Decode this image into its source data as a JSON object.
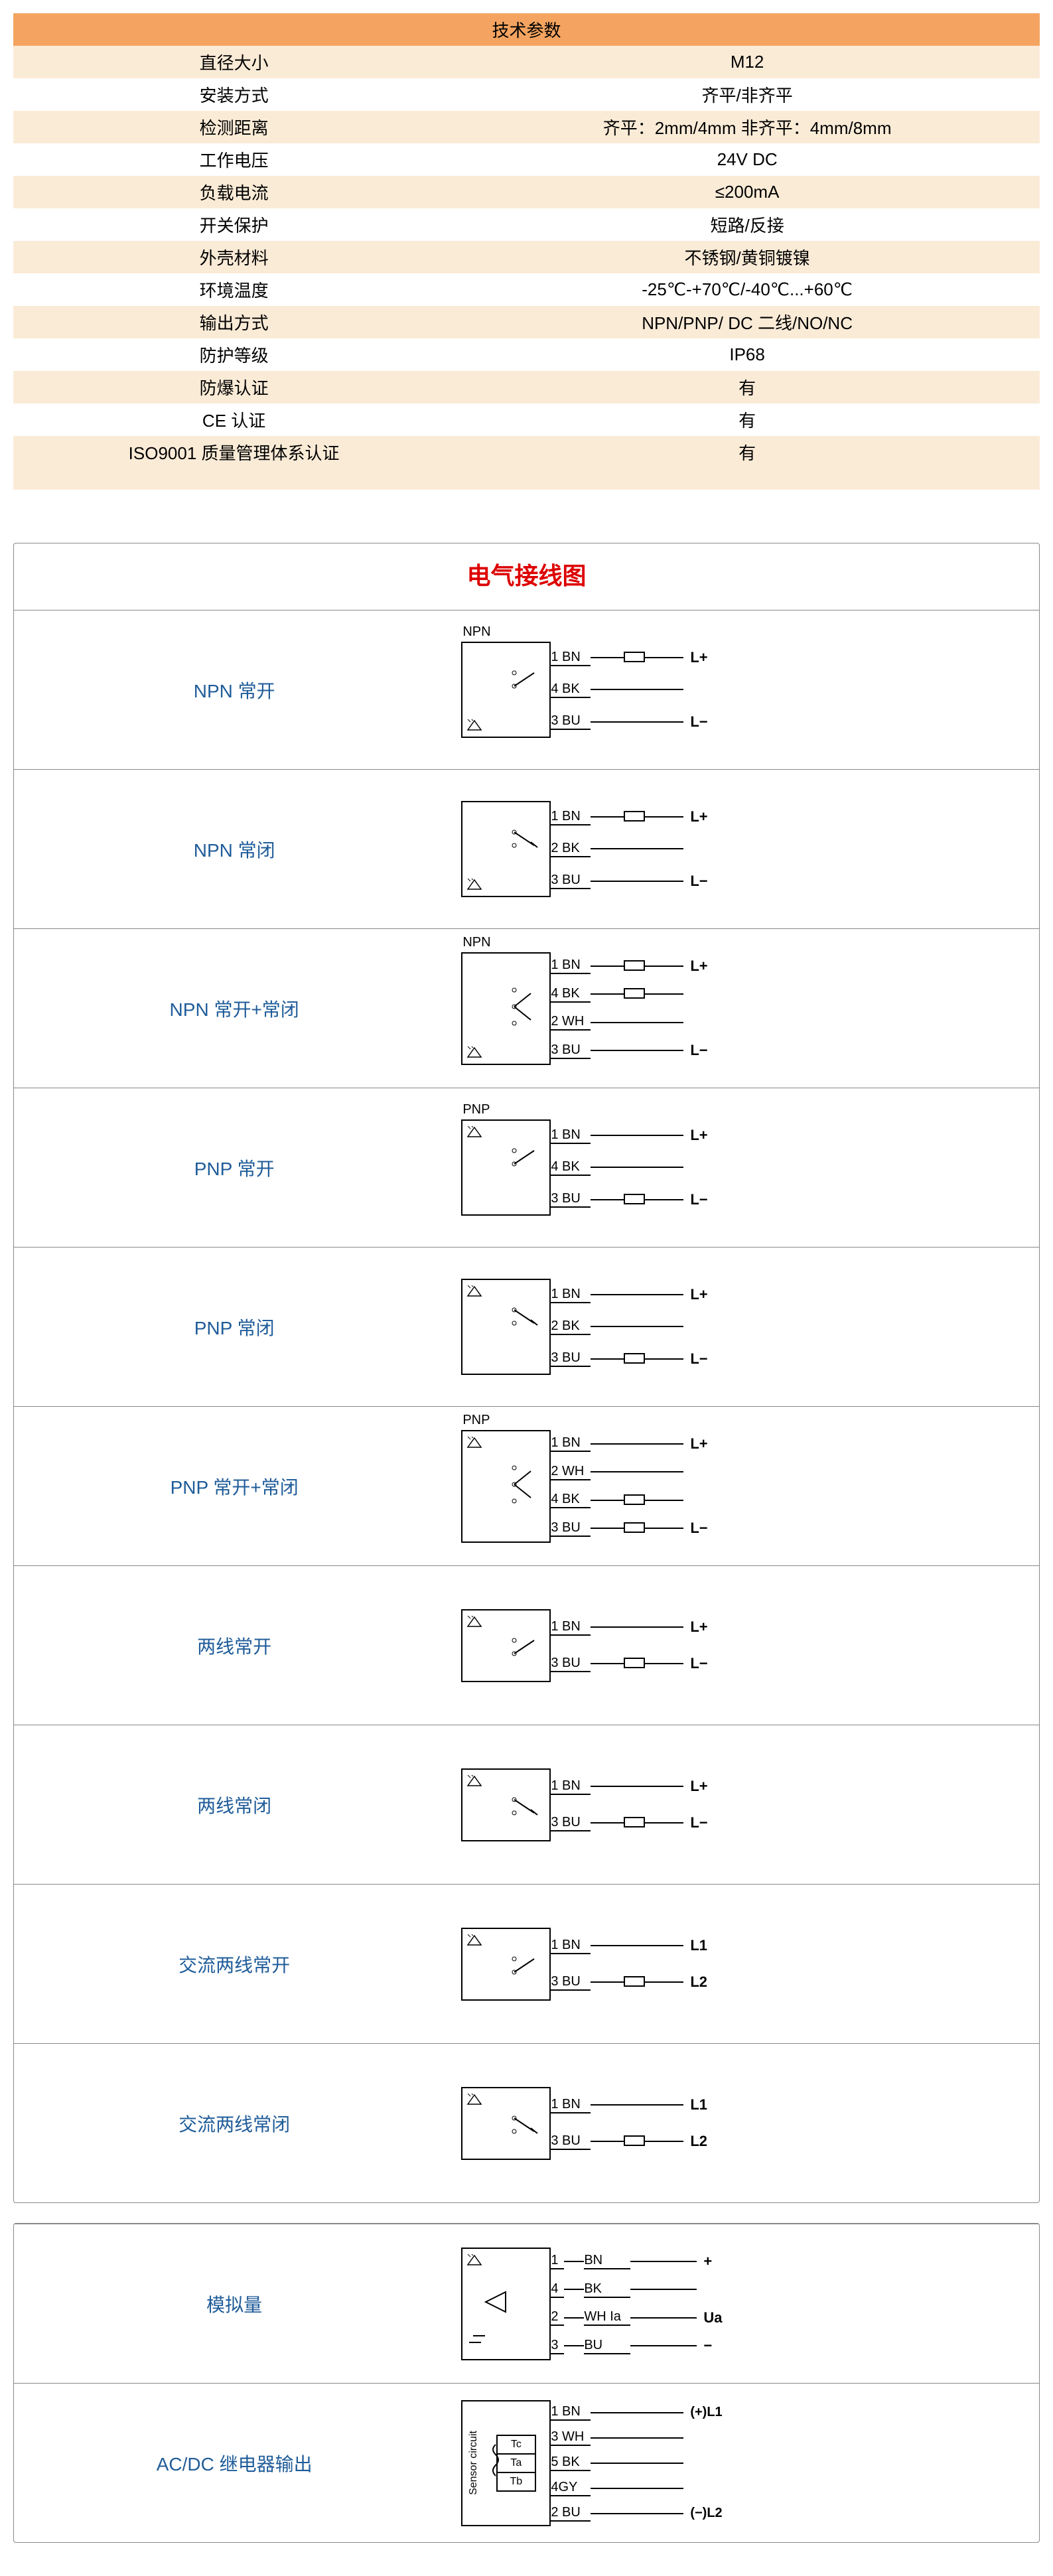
{
  "spec_table": {
    "title": "技术参数",
    "rows": [
      {
        "label": "直径大小",
        "value": "M12",
        "bg": "even"
      },
      {
        "label": "安装方式",
        "value": "齐平/非齐平",
        "bg": "odd"
      },
      {
        "label": "检测距离",
        "value": "齐平：2mm/4mm  非齐平：4mm/8mm",
        "bg": "even"
      },
      {
        "label": "工作电压",
        "value": "24V DC",
        "bg": "odd"
      },
      {
        "label": "负载电流",
        "value": "≤200mA",
        "bg": "even"
      },
      {
        "label": "开关保护",
        "value": "短路/反接",
        "bg": "odd"
      },
      {
        "label": "外壳材料",
        "value": "不锈钢/黄铜镀镍",
        "bg": "even"
      },
      {
        "label": "环境温度",
        "value": "-25℃-+70℃/-40℃...+60℃",
        "bg": "odd"
      },
      {
        "label": "输出方式",
        "value": "NPN/PNP/ DC 二线/NO/NC",
        "bg": "even"
      },
      {
        "label": "防护等级",
        "value": "IP68",
        "bg": "odd"
      },
      {
        "label": "防爆认证",
        "value": "有",
        "bg": "even"
      },
      {
        "label": "CE 认证",
        "value": "有",
        "bg": "odd"
      },
      {
        "label": "ISO9001 质量管理体系认证",
        "value": "有",
        "bg": "even"
      }
    ]
  },
  "wiring": {
    "title": "电气接线图",
    "group1": [
      {
        "id": "npn-no",
        "label": "NPN 常开",
        "topLabel": "NPN",
        "wires": [
          {
            "num": "1 BN",
            "term": "L+",
            "load": true
          },
          {
            "num": "4 BK",
            "term": "",
            "load": false
          },
          {
            "num": "3 BU",
            "term": "L−",
            "load": false
          }
        ],
        "switchType": "npn-no"
      },
      {
        "id": "npn-nc",
        "label": "NPN 常闭",
        "topLabel": "",
        "wires": [
          {
            "num": "1 BN",
            "term": "L+",
            "load": true
          },
          {
            "num": "2 BK",
            "term": "",
            "load": false
          },
          {
            "num": "3 BU",
            "term": "L−",
            "load": false
          }
        ],
        "switchType": "npn-nc"
      },
      {
        "id": "npn-nonc",
        "label": "NPN  常开+常闭",
        "topLabel": "NPN",
        "wires": [
          {
            "num": "1 BN",
            "term": "L+",
            "load": true
          },
          {
            "num": "4 BK",
            "term": "",
            "load": true
          },
          {
            "num": "2 WH",
            "term": "",
            "load": false
          },
          {
            "num": "3 BU",
            "term": "L−",
            "load": false
          }
        ],
        "switchType": "npn-nonc"
      },
      {
        "id": "pnp-no",
        "label": "PNP 常开",
        "topLabel": "PNP",
        "wires": [
          {
            "num": "1 BN",
            "term": "L+",
            "load": false
          },
          {
            "num": "4 BK",
            "term": "",
            "load": false
          },
          {
            "num": "3 BU",
            "term": "L−",
            "load": true
          }
        ],
        "switchType": "pnp-no"
      },
      {
        "id": "pnp-nc",
        "label": "PNP 常闭",
        "topLabel": "",
        "wires": [
          {
            "num": "1 BN",
            "term": "L+",
            "load": false
          },
          {
            "num": "2 BK",
            "term": "",
            "load": false
          },
          {
            "num": "3 BU",
            "term": "L−",
            "load": true
          }
        ],
        "switchType": "pnp-nc"
      },
      {
        "id": "pnp-nonc",
        "label": "PNP 常开+常闭",
        "topLabel": "PNP",
        "wires": [
          {
            "num": "1 BN",
            "term": "L+",
            "load": false
          },
          {
            "num": "2 WH",
            "term": "",
            "load": false
          },
          {
            "num": "4 BK",
            "term": "",
            "load": true
          },
          {
            "num": "3 BU",
            "term": "L−",
            "load": true
          }
        ],
        "switchType": "pnp-nonc"
      },
      {
        "id": "2wire-no",
        "label": "两线常开",
        "topLabel": "",
        "wires": [
          {
            "num": "1 BN",
            "term": "L+",
            "load": false
          },
          {
            "num": "3 BU",
            "term": "L−",
            "load": true
          }
        ],
        "switchType": "2w-no"
      },
      {
        "id": "2wire-nc",
        "label": "两线常闭",
        "topLabel": "",
        "wires": [
          {
            "num": "1 BN",
            "term": "L+",
            "load": false
          },
          {
            "num": "3 BU",
            "term": "L−",
            "load": true
          }
        ],
        "switchType": "2w-nc"
      },
      {
        "id": "ac2wire-no",
        "label": "交流两线常开",
        "topLabel": "",
        "wires": [
          {
            "num": "1 BN",
            "term": "L1",
            "load": false
          },
          {
            "num": "3 BU",
            "term": "L2",
            "load": true
          }
        ],
        "switchType": "2w-no"
      },
      {
        "id": "ac2wire-nc",
        "label": "交流两线常闭",
        "topLabel": "",
        "wires": [
          {
            "num": "1 BN",
            "term": "L1",
            "load": false
          },
          {
            "num": "3 BU",
            "term": "L2",
            "load": true
          }
        ],
        "switchType": "2w-nc"
      }
    ],
    "group2": [
      {
        "id": "analog",
        "label": "模拟量",
        "type": "analog",
        "wires": [
          {
            "num": "1",
            "lbl": "BN",
            "term": "+"
          },
          {
            "num": "4",
            "lbl": "BK",
            "term": ""
          },
          {
            "num": "2",
            "lbl": "WH  Ia",
            "term": "Ua"
          },
          {
            "num": "3",
            "lbl": "BU",
            "term": "−"
          }
        ]
      },
      {
        "id": "relay",
        "label": "AC/DC 继电器输出",
        "type": "relay",
        "sensorLabel": "Sensor circuit",
        "relays": [
          "Tc",
          "Ta",
          "Tb"
        ],
        "wires": [
          {
            "num": "1 BN",
            "term": "(+)L1"
          },
          {
            "num": "3 WH",
            "term": ""
          },
          {
            "num": "5 BK",
            "term": ""
          },
          {
            "num": "4GY",
            "term": ""
          },
          {
            "num": "2 BU",
            "term": "(−)L2"
          }
        ]
      }
    ]
  },
  "colors": {
    "header_bg": "#f4a460",
    "even_bg": "#faebd7",
    "odd_bg": "#ffffff",
    "title_color": "#d00000",
    "label_color": "#1f5c99",
    "border": "#888888",
    "line": "#000000"
  }
}
